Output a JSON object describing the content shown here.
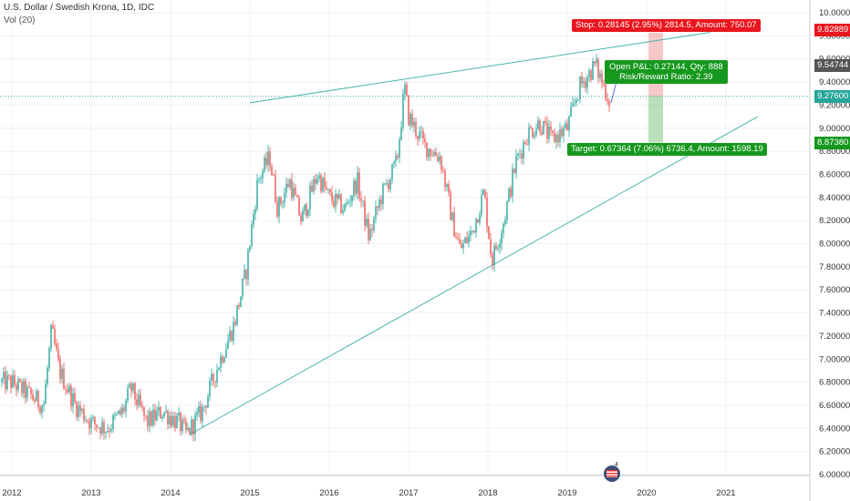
{
  "header": {
    "title": "U.S. Dollar / Swedish Krona, 1D, IDC",
    "volume": "Vol (20)"
  },
  "labels": {
    "stop": "Stop: 0.28145 (2.95%) 2814.5, Amount: 750.07",
    "target": "Target: 0.67364 (7.06%) 6736.4, Amount: 1598.19",
    "open_line1": "Open P&L: 0.27144, Qty: 888",
    "open_line2": "Risk/Reward Ratio: 2.39"
  },
  "price_tags": [
    {
      "text": "9.82889",
      "color": "#e8161e"
    },
    {
      "text": "9.54744",
      "color": "#555555"
    },
    {
      "text": "9.27600",
      "color": "#26a69a"
    },
    {
      "text": "8.87380",
      "color": "#16981e"
    }
  ],
  "chart_data": {
    "type": "line",
    "title": "U.S. Dollar / Swedish Krona, 1D, IDC",
    "x_ticks": [
      "2012",
      "2013",
      "2014",
      "2015",
      "2016",
      "2017",
      "2018",
      "2019",
      "2020",
      "2021"
    ],
    "y_ticks": [
      "10.00000",
      "9.80000",
      "9.60000",
      "9.40000",
      "9.20000",
      "9.00000",
      "8.80000",
      "8.60000",
      "8.40000",
      "8.20000",
      "8.00000",
      "7.80000",
      "7.60000",
      "7.40000",
      "7.20000",
      "7.00000",
      "6.80000",
      "6.60000",
      "6.40000",
      "6.20000",
      "6.00000"
    ],
    "ylim": [
      5.95,
      10.05
    ],
    "xlim": [
      2012.0,
      2022.0
    ],
    "series": [
      {
        "values": [
          [
            2012.0,
            6.8
          ],
          [
            2012.2,
            6.7
          ],
          [
            2012.4,
            6.6
          ],
          [
            2012.5,
            7.25
          ],
          [
            2012.6,
            6.9
          ],
          [
            2012.8,
            6.6
          ],
          [
            2013.0,
            6.45
          ],
          [
            2013.2,
            6.4
          ],
          [
            2013.4,
            6.55
          ],
          [
            2013.5,
            6.75
          ],
          [
            2013.7,
            6.45
          ],
          [
            2013.9,
            6.55
          ],
          [
            2014.1,
            6.45
          ],
          [
            2014.2,
            6.35
          ],
          [
            2014.4,
            6.55
          ],
          [
            2014.6,
            6.95
          ],
          [
            2014.8,
            7.3
          ],
          [
            2014.95,
            7.75
          ],
          [
            2015.1,
            8.55
          ],
          [
            2015.25,
            8.75
          ],
          [
            2015.35,
            8.3
          ],
          [
            2015.5,
            8.55
          ],
          [
            2015.65,
            8.2
          ],
          [
            2015.85,
            8.6
          ],
          [
            2016.0,
            8.4
          ],
          [
            2016.2,
            8.3
          ],
          [
            2016.35,
            8.55
          ],
          [
            2016.5,
            8.05
          ],
          [
            2016.65,
            8.4
          ],
          [
            2016.85,
            8.7
          ],
          [
            2016.95,
            9.35
          ],
          [
            2017.0,
            9.1
          ],
          [
            2017.2,
            8.85
          ],
          [
            2017.4,
            8.75
          ],
          [
            2017.55,
            8.2
          ],
          [
            2017.65,
            7.95
          ],
          [
            2017.8,
            8.1
          ],
          [
            2017.95,
            8.45
          ],
          [
            2018.05,
            7.85
          ],
          [
            2018.2,
            8.2
          ],
          [
            2018.35,
            8.7
          ],
          [
            2018.5,
            8.95
          ],
          [
            2018.65,
            9.05
          ],
          [
            2018.8,
            8.9
          ],
          [
            2019.0,
            9.0
          ],
          [
            2019.15,
            9.35
          ],
          [
            2019.35,
            9.55
          ],
          [
            2019.5,
            9.3
          ],
          [
            2019.55,
            9.2
          ]
        ]
      },
      {
        "name": "upper-trend",
        "values": [
          [
            2015.0,
            9.22
          ],
          [
            2020.8,
            9.83
          ]
        ]
      },
      {
        "name": "lower-trend",
        "values": [
          [
            2014.25,
            6.35
          ],
          [
            2021.4,
            9.1
          ]
        ]
      }
    ],
    "horizontal_line": 9.276,
    "stop_price": 9.82889,
    "entry_price": 9.276,
    "target_price": 8.8738,
    "last_price": 9.54744,
    "grid": true,
    "legend": "none",
    "colors": {
      "candles": "#26a69a",
      "trend": "#4db6ac",
      "stop": "#ef9a9a",
      "target": "#81c784",
      "bg": "#ffffff",
      "grid": "#eef0f3"
    }
  }
}
